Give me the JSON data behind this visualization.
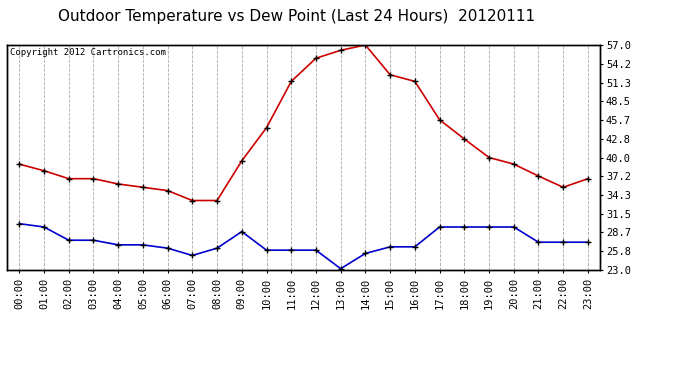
{
  "title": "Outdoor Temperature vs Dew Point (Last 24 Hours)  20120111",
  "copyright": "Copyright 2012 Cartronics.com",
  "hours": [
    "00:00",
    "01:00",
    "02:00",
    "03:00",
    "04:00",
    "05:00",
    "06:00",
    "07:00",
    "08:00",
    "09:00",
    "10:00",
    "11:00",
    "12:00",
    "13:00",
    "14:00",
    "15:00",
    "16:00",
    "17:00",
    "18:00",
    "19:00",
    "20:00",
    "21:00",
    "22:00",
    "23:00"
  ],
  "temp": [
    39.0,
    38.0,
    36.8,
    36.8,
    36.0,
    35.5,
    35.0,
    33.5,
    33.5,
    39.5,
    44.5,
    51.5,
    55.0,
    56.2,
    57.0,
    52.5,
    51.5,
    45.7,
    42.8,
    40.0,
    39.0,
    37.2,
    35.5,
    36.8
  ],
  "dew": [
    30.0,
    29.5,
    27.5,
    27.5,
    26.8,
    26.8,
    26.3,
    25.2,
    26.3,
    28.8,
    26.0,
    26.0,
    26.0,
    23.2,
    25.5,
    26.5,
    26.5,
    29.5,
    29.5,
    29.5,
    29.5,
    27.2,
    27.2,
    27.2
  ],
  "temp_color": "#cc0000",
  "dew_color": "#0000cc",
  "bg_color": "#ffffff",
  "grid_color": "#aaaaaa",
  "yticks_right": [
    57.0,
    54.2,
    51.3,
    48.5,
    45.7,
    42.8,
    40.0,
    37.2,
    34.3,
    31.5,
    28.7,
    25.8,
    23.0
  ],
  "ymin": 23.0,
  "ymax": 57.0,
  "title_fontsize": 11,
  "copyright_fontsize": 6.5,
  "tick_fontsize": 7.5
}
